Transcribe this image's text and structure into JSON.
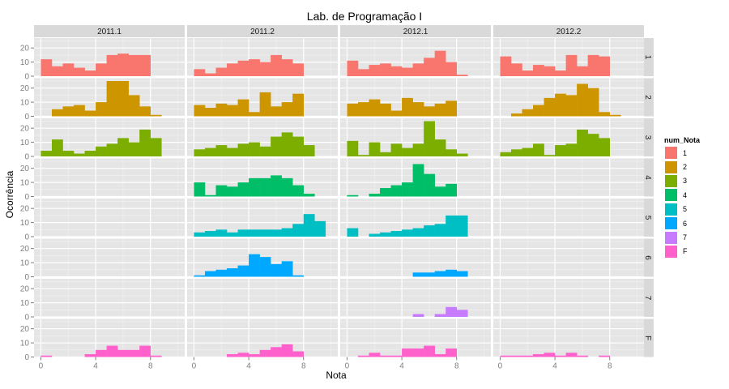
{
  "chart_data": {
    "type": "bar",
    "title": "Lab. de Programação I",
    "xlabel": "Nota",
    "ylabel": "Ocorrência",
    "columns": [
      "2011.1",
      "2011.2",
      "2012.1",
      "2012.2"
    ],
    "rows": [
      "1",
      "2",
      "3",
      "4",
      "5",
      "6",
      "7",
      "F"
    ],
    "x_ticks": [
      0,
      4,
      8
    ],
    "y_ticks": [
      0,
      10,
      20
    ],
    "xlim": [
      -0.5,
      10.5
    ],
    "ylim": [
      0,
      27
    ],
    "bin_start": 0,
    "bin_width": 0.8,
    "legend": {
      "title": "num_Nota",
      "placement": "right",
      "items": [
        {
          "label": "1",
          "color": "#F8766D"
        },
        {
          "label": "2",
          "color": "#CD9600"
        },
        {
          "label": "3",
          "color": "#7CAE00"
        },
        {
          "label": "4",
          "color": "#00BE67"
        },
        {
          "label": "5",
          "color": "#00BFC4"
        },
        {
          "label": "6",
          "color": "#00A9FF"
        },
        {
          "label": "7",
          "color": "#C77CFF"
        },
        {
          "label": "F",
          "color": "#FF61CC"
        }
      ]
    },
    "panels": {
      "1": {
        "2011.1": [
          12,
          7,
          9,
          6,
          4,
          9,
          15,
          16,
          15,
          15
        ],
        "2011.2": [
          5,
          2,
          6,
          9,
          11,
          12,
          10,
          15,
          12,
          9
        ],
        "2012.1": [
          11,
          5,
          8,
          9,
          7,
          6,
          9,
          13,
          18,
          10,
          1
        ],
        "2012.2": [
          14,
          9,
          4,
          8,
          7,
          4,
          15,
          7,
          15,
          14
        ]
      },
      "2": {
        "2011.1": [
          0,
          5,
          7,
          8,
          4,
          10,
          25,
          25,
          15,
          7,
          1
        ],
        "2011.2": [
          8,
          6,
          9,
          8,
          12,
          3,
          17,
          7,
          10,
          16
        ],
        "2012.1": [
          9,
          10,
          12,
          9,
          4,
          13,
          10,
          7,
          9,
          11
        ],
        "2012.2": [
          0,
          2,
          5,
          8,
          13,
          16,
          15,
          23,
          20,
          3,
          1
        ]
      },
      "3": {
        "2011.1": [
          4,
          12,
          4,
          2,
          4,
          7,
          9,
          13,
          10,
          19,
          13
        ],
        "2011.2": [
          5,
          6,
          8,
          6,
          9,
          10,
          7,
          14,
          17,
          14,
          8
        ],
        "2012.1": [
          11,
          1,
          10,
          3,
          9,
          6,
          9,
          25,
          12,
          5,
          2
        ],
        "2012.2": [
          3,
          5,
          6,
          9,
          1,
          8,
          9,
          19,
          16,
          13
        ]
      },
      "4": {
        "2011.1": [],
        "2011.2": [
          10,
          1,
          8,
          7,
          10,
          13,
          13,
          15,
          13,
          8,
          2
        ],
        "2012.1": [
          1,
          0,
          2,
          6,
          8,
          10,
          23,
          16,
          7,
          9
        ],
        "2012.2": []
      },
      "5": {
        "2011.1": [],
        "2011.2": [
          3,
          4,
          5,
          3,
          5,
          5,
          5,
          5,
          6,
          9,
          16,
          11
        ],
        "2012.1": [
          6,
          0,
          2,
          3,
          4,
          5,
          6,
          8,
          9,
          15,
          15
        ],
        "2012.2": []
      },
      "6": {
        "2011.1": [],
        "2011.2": [
          1,
          4,
          5,
          6,
          8,
          16,
          14,
          9,
          11,
          1
        ],
        "2012.1": [
          0,
          0,
          0,
          0,
          0,
          0,
          3,
          3,
          4,
          5,
          4
        ],
        "2012.2": []
      },
      "7": {
        "2011.1": [],
        "2011.2": [],
        "2012.1": [
          0,
          0,
          0,
          0,
          0,
          0,
          2,
          0,
          2,
          7,
          5
        ],
        "2012.2": []
      },
      "F": {
        "2011.1": [
          1,
          0,
          0,
          0,
          2,
          5,
          8,
          5,
          5,
          8,
          1
        ],
        "2011.2": [
          0,
          0,
          0,
          2,
          3,
          2,
          5,
          7,
          9,
          4
        ],
        "2012.1": [
          0,
          1,
          3,
          1,
          1,
          6,
          6,
          8,
          2,
          6
        ],
        "2012.2": [
          1,
          1,
          1,
          2,
          3,
          1,
          3,
          1,
          0,
          1
        ]
      }
    }
  }
}
